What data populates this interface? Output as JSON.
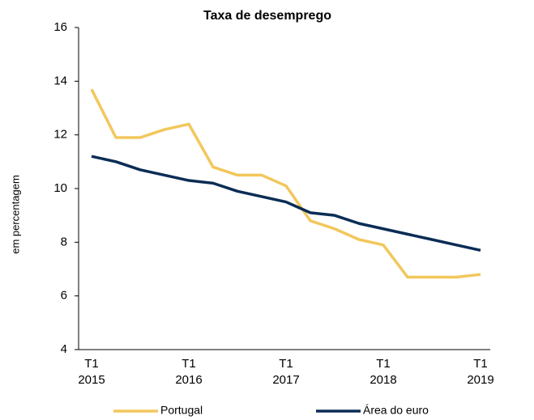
{
  "chart_data": {
    "type": "line",
    "title": "Taxa de desemprego",
    "y_label": "em percentagem",
    "categories": [
      "T1\n2015",
      null,
      null,
      null,
      "T1\n2016",
      null,
      null,
      null,
      "T1\n2017",
      null,
      null,
      null,
      "T1\n2018",
      null,
      null,
      null,
      "T1\n2019"
    ],
    "series": [
      {
        "name": "Portugal",
        "color": "#f2c75c",
        "values": [
          13.7,
          11.9,
          11.9,
          12.2,
          12.4,
          10.8,
          10.5,
          10.5,
          10.1,
          8.8,
          8.5,
          8.1,
          7.9,
          6.7,
          6.7,
          6.7,
          6.8
        ]
      },
      {
        "name": "Área do euro",
        "color": "#0b2d55",
        "values": [
          11.2,
          11.0,
          10.7,
          10.5,
          10.3,
          10.2,
          9.9,
          9.7,
          9.5,
          9.1,
          9.0,
          8.7,
          8.5,
          8.3,
          8.1,
          7.9,
          7.7
        ]
      }
    ],
    "ylim": [
      4,
      16
    ],
    "yticks": [
      4,
      6,
      8,
      10,
      12,
      14,
      16
    ],
    "grid": false,
    "legend": "bottom"
  }
}
